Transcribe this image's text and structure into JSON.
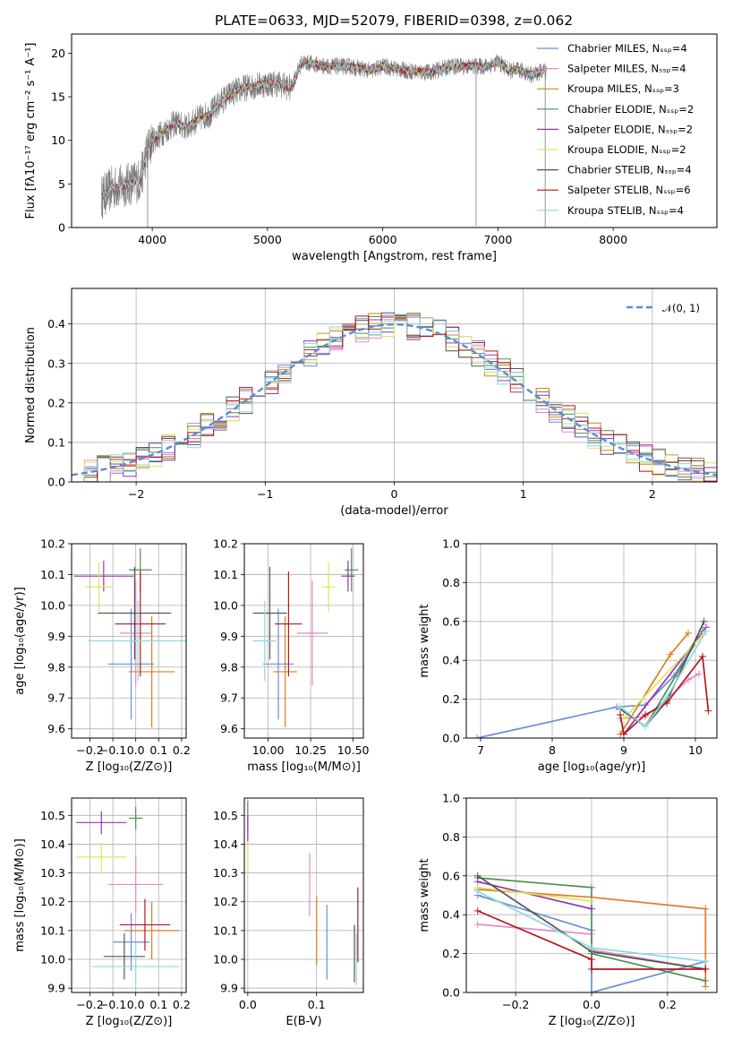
{
  "colors": [
    "#6a8ed8",
    "#e78ac3",
    "#e07b22",
    "#4f8f4f",
    "#9a30b0",
    "#d8e85a",
    "#555555",
    "#b01a1a",
    "#8fd8e0"
  ],
  "chart_data": [
    {
      "id": "spectrum",
      "type": "line",
      "title": "PLATE=0633, MJD=52079, FIBERID=0398, z=0.062",
      "xlabel": "wavelength [Angstrom, rest frame]",
      "ylabel": "Flux [fλ10⁻¹⁷ erg cm⁻² s⁻¹ A⁻¹]",
      "xlim": [
        3300,
        8900
      ],
      "ylim": [
        0,
        22.2
      ],
      "xticks": [
        4000,
        5000,
        6000,
        7000,
        8000
      ],
      "yticks": [
        0,
        5,
        10,
        15,
        20
      ],
      "legend_position": "right",
      "legend": [
        "Chabrier MILES, Nₛₛₚ=4",
        "Salpeter MILES, Nₛₛₚ=4",
        "Kroupa MILES, Nₛₛₚ=3",
        "Chabrier ELODIE, Nₛₛₚ=2",
        "Salpeter ELODIE, Nₛₛₚ=2",
        "Kroupa ELODIE, Nₛₛₚ=2",
        "Chabrier STELIB, Nₛₛₚ=4",
        "Salpeter STELIB, Nₛₛₚ=6",
        "Kroupa STELIB, Nₛₛₚ=4"
      ],
      "continuum": {
        "x": [
          3560,
          3650,
          3800,
          3900,
          3950,
          4000,
          4100,
          4200,
          4300,
          4400,
          4500,
          4600,
          4700,
          4800,
          4900,
          5000,
          5100,
          5200,
          5300,
          5500,
          5700,
          5900,
          6000,
          6200,
          6400,
          6600,
          6800,
          6900,
          7000,
          7100,
          7200,
          7300,
          7400
        ],
        "y": [
          3.5,
          4.5,
          5.0,
          5.5,
          8.5,
          10.0,
          11.0,
          12.0,
          11.5,
          12.5,
          13.0,
          14.5,
          15.5,
          16.0,
          16.3,
          16.5,
          16.5,
          16.0,
          19.0,
          18.5,
          18.5,
          18.0,
          18.5,
          18.0,
          17.8,
          18.5,
          18.5,
          18.5,
          19.0,
          18.0,
          18.0,
          17.5,
          18.0
        ]
      },
      "data_range": [
        3560,
        7420
      ]
    },
    {
      "id": "residuals",
      "type": "step",
      "xlabel": "(data-model)/error",
      "ylabel": "Normed distribution",
      "xlim": [
        -2.5,
        2.5
      ],
      "ylim": [
        0,
        0.49
      ],
      "xticks": [
        -2,
        -1,
        0,
        1,
        2
      ],
      "yticks": [
        0.0,
        0.1,
        0.2,
        0.3,
        0.4
      ],
      "legend_label": "𝒩(0, 1)",
      "legend_position": "top-right",
      "bin_width": 0.1
    },
    {
      "id": "age-vs-Z",
      "type": "errorbar",
      "xlabel": "Z [log₁₀(Z/Z⊙)]",
      "ylabel": "age  [log₁₀(age/yr)]",
      "xlim": [
        -0.28,
        0.22
      ],
      "ylim": [
        9.57,
        10.2
      ],
      "xticks": [
        -0.2,
        -0.1,
        0.0,
        0.1,
        0.2
      ],
      "yticks": [
        9.6,
        9.7,
        9.8,
        9.9,
        10.0,
        10.1,
        10.2
      ],
      "points": [
        {
          "x": -0.02,
          "xerr": 0.1,
          "y": 9.81,
          "yerr": 0.18
        },
        {
          "x": 0.0,
          "xerr": 0.07,
          "y": 9.91,
          "yerr": 0.17
        },
        {
          "x": 0.07,
          "xerr": 0.1,
          "y": 9.785,
          "yerr": 0.18
        },
        {
          "x": 0.02,
          "xerr": 0.05,
          "y": 10.115,
          "yerr": 0.07
        },
        {
          "x": -0.14,
          "xerr": 0.13,
          "y": 10.095,
          "yerr": 0.05
        },
        {
          "x": -0.16,
          "xerr": 0.06,
          "y": 10.06,
          "yerr": 0.08
        },
        {
          "x": -0.005,
          "xerr": 0.16,
          "y": 9.975,
          "yerr": 0.15
        },
        {
          "x": 0.02,
          "xerr": 0.11,
          "y": 9.94,
          "yerr": 0.17
        },
        {
          "x": 0.01,
          "xerr": 0.22,
          "y": 9.885,
          "yerr": 0.13
        }
      ]
    },
    {
      "id": "age-vs-mass",
      "type": "errorbar",
      "xlabel": "mass [log₁₀(M/M⊙)]",
      "xlim": [
        9.86,
        10.56
      ],
      "ylim": [
        9.57,
        10.2
      ],
      "xticks": [
        10.0,
        10.25,
        10.5
      ],
      "yticks": [
        9.6,
        9.7,
        9.8,
        9.9,
        10.0,
        10.1,
        10.2
      ],
      "points": [
        {
          "x": 10.06,
          "xerr": 0.09,
          "y": 9.81,
          "yerr": 0.18
        },
        {
          "x": 10.26,
          "xerr": 0.09,
          "y": 9.91,
          "yerr": 0.17
        },
        {
          "x": 10.1,
          "xerr": 0.07,
          "y": 9.785,
          "yerr": 0.18
        },
        {
          "x": 10.49,
          "xerr": 0.04,
          "y": 10.115,
          "yerr": 0.07
        },
        {
          "x": 10.47,
          "xerr": 0.04,
          "y": 10.095,
          "yerr": 0.05
        },
        {
          "x": 10.355,
          "xerr": 0.04,
          "y": 10.06,
          "yerr": 0.08
        },
        {
          "x": 10.01,
          "xerr": 0.1,
          "y": 9.975,
          "yerr": 0.15
        },
        {
          "x": 10.12,
          "xerr": 0.08,
          "y": 9.94,
          "yerr": 0.17
        },
        {
          "x": 9.98,
          "xerr": 0.07,
          "y": 9.885,
          "yerr": 0.13
        }
      ]
    },
    {
      "id": "massweight-vs-age",
      "type": "line",
      "xlabel": "age  [log₁₀(age/yr)]",
      "ylabel": "mass weight",
      "xlim": [
        6.8,
        10.3
      ],
      "ylim": [
        0,
        1.0
      ],
      "xticks": [
        7,
        8,
        9,
        10
      ],
      "yticks": [
        0.0,
        0.2,
        0.4,
        0.6,
        0.8,
        1.0
      ],
      "series": [
        {
          "x": [
            6.95,
            8.9,
            9.3,
            9.7,
            10.05
          ],
          "y": [
            0.0,
            0.16,
            0.17,
            0.32,
            0.52
          ]
        },
        {
          "x": [
            8.95,
            9.3,
            9.6,
            9.9,
            10.05
          ],
          "y": [
            0.1,
            0.11,
            0.2,
            0.3,
            0.33
          ]
        },
        {
          "x": [
            8.95,
            9.65,
            9.9
          ],
          "y": [
            0.02,
            0.43,
            0.54
          ]
        },
        {
          "x": [
            9.3,
            10.1
          ],
          "y": [
            0.06,
            0.55
          ]
        },
        {
          "x": [
            9.0,
            10.15
          ],
          "y": [
            0.02,
            0.57
          ]
        },
        {
          "x": [
            9.0,
            10.1
          ],
          "y": [
            0.1,
            0.53
          ]
        },
        {
          "x": [
            8.95,
            9.3,
            9.6,
            10.12
          ],
          "y": [
            0.15,
            0.06,
            0.19,
            0.6
          ]
        },
        {
          "x": [
            8.95,
            9.0,
            9.3,
            9.6,
            10.1,
            10.18
          ],
          "y": [
            0.12,
            0.02,
            0.12,
            0.18,
            0.42,
            0.14
          ]
        },
        {
          "x": [
            8.95,
            9.3,
            9.6,
            10.15
          ],
          "y": [
            0.16,
            0.06,
            0.21,
            0.55
          ]
        }
      ]
    },
    {
      "id": "mass-vs-Z",
      "type": "errorbar",
      "xlabel": "Z [log₁₀(Z/Z⊙)]",
      "ylabel": "mass [log₁₀(M/M⊙)]",
      "xlim": [
        -0.28,
        0.22
      ],
      "ylim": [
        9.885,
        10.56
      ],
      "xticks": [
        -0.2,
        -0.1,
        0.0,
        0.1,
        0.2
      ],
      "yticks": [
        9.9,
        10.0,
        10.1,
        10.2,
        10.3,
        10.4,
        10.5
      ],
      "points": [
        {
          "x": -0.02,
          "xerr": 0.08,
          "y": 10.06,
          "yerr": 0.1
        },
        {
          "x": 0.0,
          "xerr": 0.12,
          "y": 10.26,
          "yerr": 0.1
        },
        {
          "x": 0.07,
          "xerr": 0.12,
          "y": 10.1,
          "yerr": 0.1
        },
        {
          "x": 0.0,
          "xerr": 0.03,
          "y": 10.49,
          "yerr": 0.04
        },
        {
          "x": -0.15,
          "xerr": 0.11,
          "y": 10.475,
          "yerr": 0.04
        },
        {
          "x": -0.15,
          "xerr": 0.11,
          "y": 10.355,
          "yerr": 0.05
        },
        {
          "x": -0.05,
          "xerr": 0.09,
          "y": 10.01,
          "yerr": 0.08
        },
        {
          "x": 0.04,
          "xerr": 0.11,
          "y": 10.12,
          "yerr": 0.09
        },
        {
          "x": 0.0,
          "xerr": 0.19,
          "y": 9.975,
          "yerr": 0.08
        }
      ]
    },
    {
      "id": "mass-vs-EBV",
      "type": "errorbar",
      "xlabel": "E(B-V)",
      "xlim": [
        -0.005,
        0.168
      ],
      "ylim": [
        9.885,
        10.56
      ],
      "xticks": [
        0.0,
        0.1
      ],
      "yticks": [
        9.9,
        10.0,
        10.1,
        10.2,
        10.3,
        10.4,
        10.5
      ],
      "points": [
        {
          "x": 0.115,
          "xerr": 0,
          "y": 10.06,
          "yerr": 0.13
        },
        {
          "x": 0.09,
          "xerr": 0,
          "y": 10.26,
          "yerr": 0.11
        },
        {
          "x": 0.1,
          "xerr": 0,
          "y": 10.1,
          "yerr": 0.12
        },
        {
          "x": 0.0,
          "xerr": 0,
          "y": 10.5,
          "yerr": 0.05
        },
        {
          "x": 0.0,
          "xerr": 0,
          "y": 10.45,
          "yerr": 0.05
        },
        {
          "x": 0.0,
          "xerr": 0,
          "y": 10.35,
          "yerr": 0.06
        },
        {
          "x": 0.155,
          "xerr": 0,
          "y": 10.02,
          "yerr": 0.1
        },
        {
          "x": 0.16,
          "xerr": 0,
          "y": 10.12,
          "yerr": 0.13
        },
        {
          "x": 0.158,
          "xerr": 0,
          "y": 10.0,
          "yerr": 0.09
        }
      ]
    },
    {
      "id": "massweight-vs-Z",
      "type": "line",
      "xlabel": "Z [log₁₀(Z/Z⊙)]",
      "ylabel": "mass weight",
      "xlim": [
        -0.33,
        0.33
      ],
      "ylim": [
        0,
        1.0
      ],
      "xticks": [
        -0.2,
        0.0,
        0.2
      ],
      "yticks": [
        0.0,
        0.2,
        0.4,
        0.6,
        0.8,
        1.0
      ],
      "series": [
        {
          "x": [
            -0.3,
            0.0,
            0.0,
            0.3
          ],
          "y": [
            0.5,
            0.32,
            0.0,
            0.16
          ]
        },
        {
          "x": [
            -0.3,
            0.0,
            0.0,
            0.3
          ],
          "y": [
            0.35,
            0.3,
            0.22,
            0.12
          ]
        },
        {
          "x": [
            -0.3,
            0.0,
            0.3,
            0.3
          ],
          "y": [
            0.53,
            0.49,
            0.43,
            0.03
          ]
        },
        {
          "x": [
            -0.3,
            0.0,
            0.0,
            0.3
          ],
          "y": [
            0.59,
            0.54,
            0.2,
            0.06
          ]
        },
        {
          "x": [
            -0.3,
            0.0
          ],
          "y": [
            0.57,
            0.43
          ]
        },
        {
          "x": [
            -0.3,
            0.0
          ],
          "y": [
            0.54,
            0.47
          ]
        },
        {
          "x": [
            -0.3,
            0.0,
            0.3
          ],
          "y": [
            0.6,
            0.21,
            0.12
          ]
        },
        {
          "x": [
            -0.3,
            0.0,
            0.0,
            0.3
          ],
          "y": [
            0.42,
            0.17,
            0.12,
            0.12
          ]
        },
        {
          "x": [
            -0.3,
            0.0,
            0.3
          ],
          "y": [
            0.52,
            0.23,
            0.16
          ]
        }
      ]
    }
  ]
}
